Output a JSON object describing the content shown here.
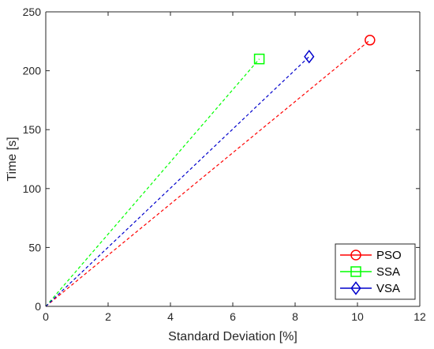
{
  "chart_data": {
    "type": "line",
    "xlabel": "Standard Deviation [%]",
    "ylabel": "Time [s]",
    "xlim": [
      0,
      12
    ],
    "ylim": [
      0,
      250
    ],
    "xticks": [
      0,
      2,
      4,
      6,
      8,
      10,
      12
    ],
    "yticks": [
      0,
      50,
      100,
      150,
      200,
      250
    ],
    "xtick_labels": [
      "0",
      "2",
      "4",
      "6",
      "8",
      "10",
      "12"
    ],
    "ytick_labels": [
      "0",
      "50",
      "100",
      "150",
      "200",
      "250"
    ],
    "grid": false,
    "legend_position": "bottom-right",
    "series": [
      {
        "name": "PSO",
        "color": "#ff0000",
        "marker": "circle",
        "line_style": "dashed",
        "x": [
          0,
          10.4
        ],
        "y": [
          0,
          226
        ]
      },
      {
        "name": "SSA",
        "color": "#00ff00",
        "marker": "square",
        "line_style": "dashed",
        "x": [
          0,
          6.85
        ],
        "y": [
          0,
          210
        ]
      },
      {
        "name": "VSA",
        "color": "#0000cc",
        "marker": "diamond",
        "line_style": "dashed",
        "x": [
          0,
          8.45
        ],
        "y": [
          0,
          212
        ]
      }
    ]
  }
}
